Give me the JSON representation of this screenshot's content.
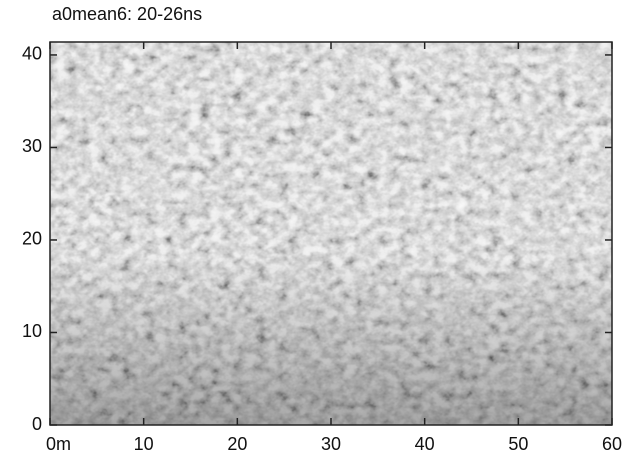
{
  "chart_data": {
    "type": "heatmap",
    "title": "a0mean6: 20-26ns",
    "xlim": [
      0,
      60
    ],
    "xticks": [
      {
        "value": 0,
        "label": "0m"
      },
      10,
      20,
      30,
      40,
      50,
      60
    ],
    "ylim": [
      0,
      41.4
    ],
    "yticks": [
      0,
      10,
      20,
      30,
      40
    ]
  }
}
